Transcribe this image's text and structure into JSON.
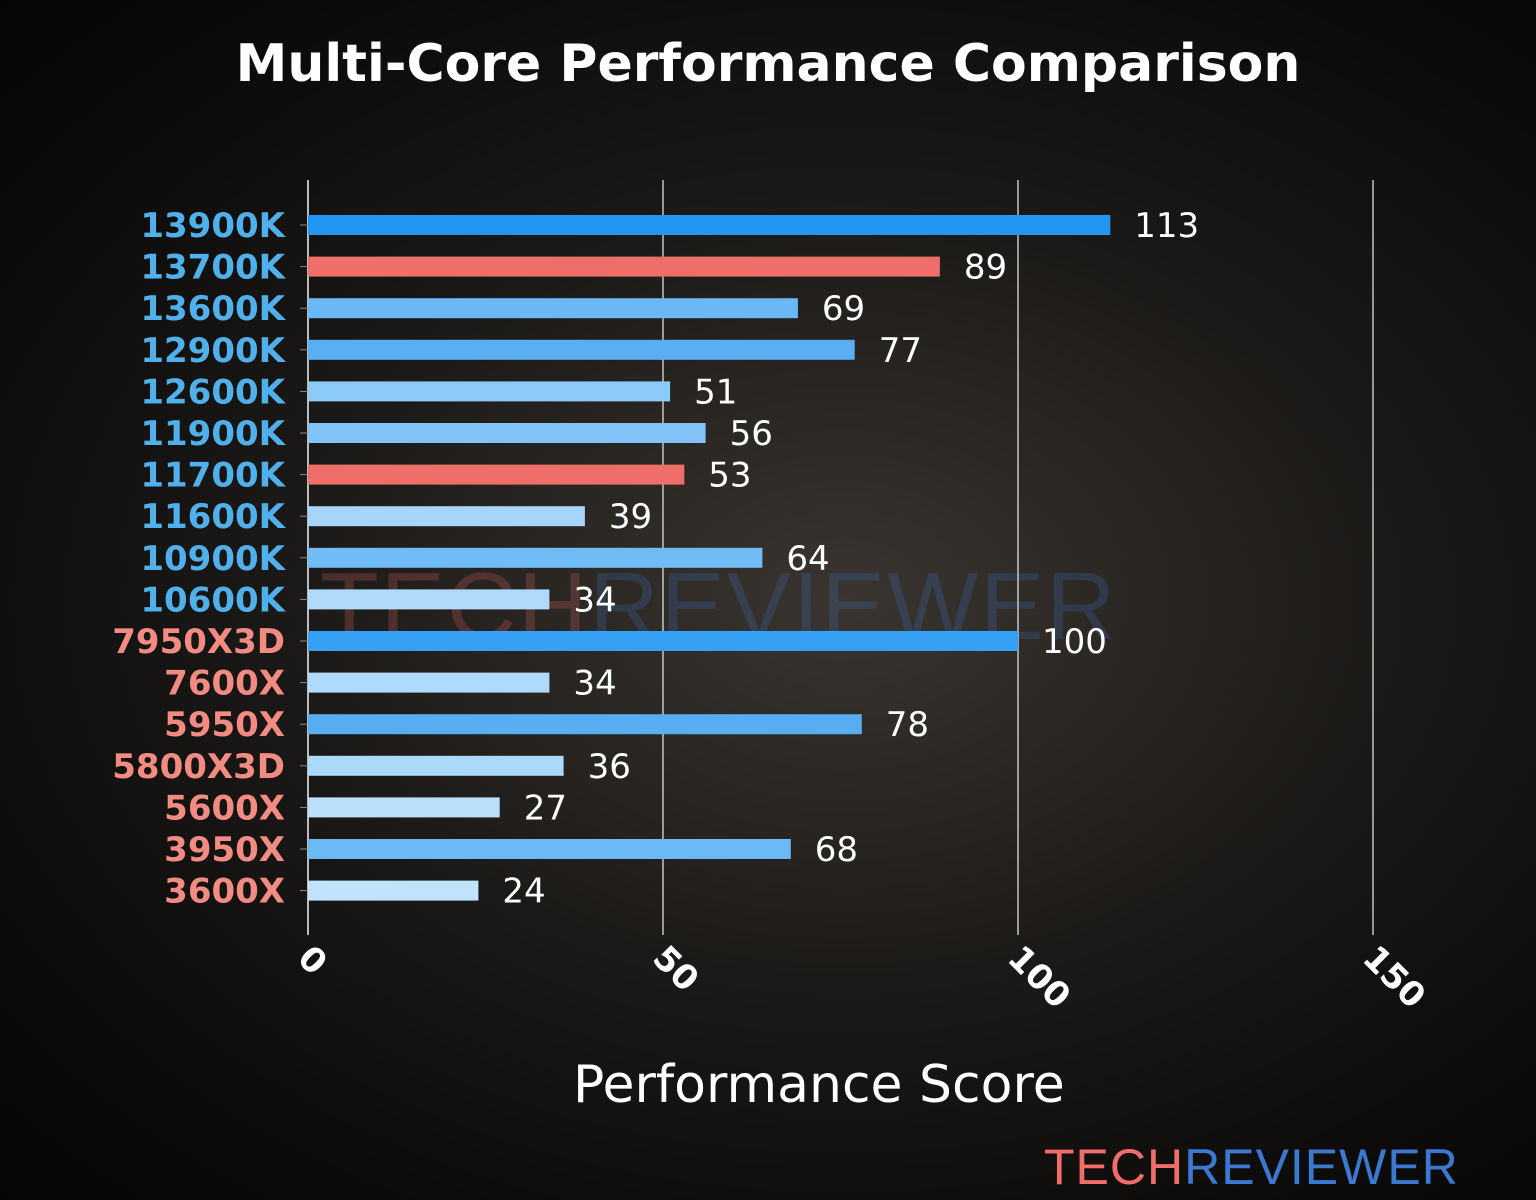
{
  "chart_data": {
    "type": "bar",
    "orientation": "horizontal",
    "title": "Multi-Core Performance Comparison",
    "xlabel": "Performance Score",
    "ylabel": "",
    "xlim": [
      0,
      150
    ],
    "xticks": [
      0,
      50,
      100,
      150
    ],
    "grid": "vertical",
    "categories": [
      "13900K",
      "13700K",
      "13600K",
      "12900K",
      "12600K",
      "11900K",
      "11700K",
      "11600K",
      "10900K",
      "10600K",
      "7950X3D",
      "7600X",
      "5950X",
      "5800X3D",
      "5600X",
      "3950X",
      "3600X"
    ],
    "values": [
      113,
      89,
      69,
      77,
      51,
      56,
      53,
      39,
      64,
      34,
      100,
      34,
      78,
      36,
      27,
      68,
      24
    ],
    "bar_colors": [
      "#2196F3",
      "#F06E6A",
      "#6AB8F5",
      "#5AAFF3",
      "#8CCAF8",
      "#82C4F7",
      "#F06E6A",
      "#A6D4FA",
      "#72BCF6",
      "#B0DAFB",
      "#36A0F4",
      "#B0DAFB",
      "#58AEF3",
      "#ACD8FA",
      "#BAE0FC",
      "#6CBAF5",
      "#C2E3FD"
    ],
    "label_colors": [
      "#4FB0EC",
      "#4FB0EC",
      "#4FB0EC",
      "#4FB0EC",
      "#4FB0EC",
      "#4FB0EC",
      "#4FB0EC",
      "#4FB0EC",
      "#4FB0EC",
      "#4FB0EC",
      "#F28B82",
      "#F28B82",
      "#F28B82",
      "#F28B82",
      "#F28B82",
      "#F28B82",
      "#F28B82"
    ]
  },
  "watermark": {
    "part1": "TECH",
    "part2": "REVIEWER",
    "color1": "#F06E6A",
    "color2": "#3B78D0"
  },
  "logo": {
    "part1": "TECH",
    "part2": "REVIEWER",
    "color1": "#F06E6A",
    "color2": "#3B78D0"
  }
}
